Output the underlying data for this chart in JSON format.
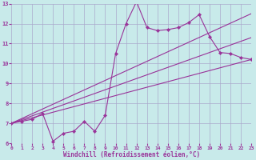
{
  "background_color": "#c8eaea",
  "grid_color": "#aaaacc",
  "line_color": "#993399",
  "xlabel": "Windchill (Refroidissement éolien,°C)",
  "xlim": [
    0,
    23
  ],
  "ylim": [
    6,
    13
  ],
  "xticks": [
    0,
    1,
    2,
    3,
    4,
    5,
    6,
    7,
    8,
    9,
    10,
    11,
    12,
    13,
    14,
    15,
    16,
    17,
    18,
    19,
    20,
    21,
    22,
    23
  ],
  "yticks": [
    6,
    7,
    8,
    9,
    10,
    11,
    12,
    13
  ],
  "zigzag_x": [
    0,
    1,
    2,
    3,
    4,
    5,
    6,
    7,
    8,
    9,
    10,
    11,
    12,
    13,
    14,
    15,
    16,
    17,
    18,
    19,
    20,
    21,
    22,
    23
  ],
  "zigzag_y": [
    7.0,
    7.1,
    7.2,
    7.5,
    6.1,
    6.5,
    6.6,
    7.1,
    6.6,
    7.4,
    10.5,
    12.0,
    13.1,
    11.8,
    11.65,
    11.7,
    11.8,
    12.05,
    12.45,
    11.35,
    10.55,
    10.5,
    10.3,
    10.2
  ],
  "line1_x": [
    0,
    23
  ],
  "line1_y": [
    7.0,
    12.5
  ],
  "line2_x": [
    0,
    23
  ],
  "line2_y": [
    7.0,
    11.3
  ],
  "line3_x": [
    0,
    23
  ],
  "line3_y": [
    7.0,
    10.2
  ]
}
